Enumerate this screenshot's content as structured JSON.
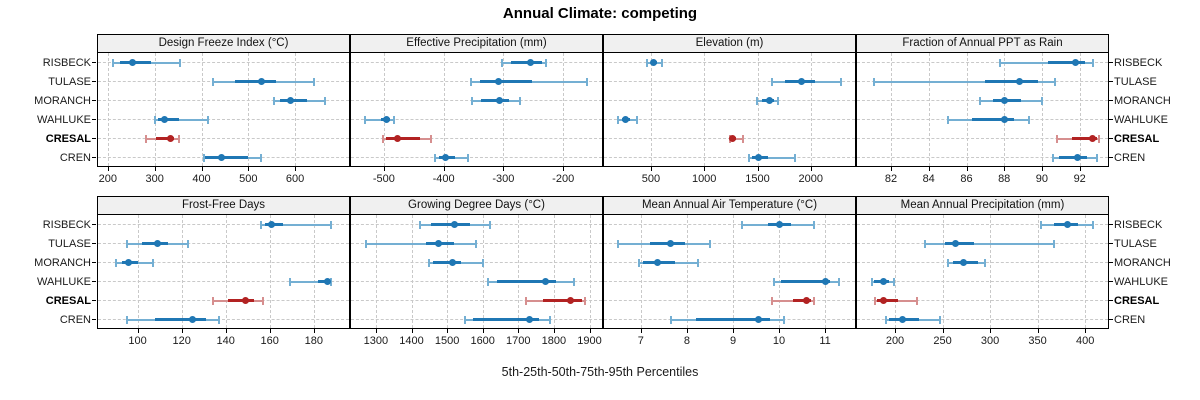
{
  "title": "Annual Climate: competing",
  "xlabel": "5th-25th-50th-75th-95th Percentiles",
  "colors": {
    "series_main": "#1f77b4",
    "series_light": "#74afd3",
    "highlight_main": "#b22222",
    "highlight_light": "#d68f8f",
    "grid": "#c9c9c9",
    "strip_bg": "#f0f0f0",
    "border": "#000000"
  },
  "chart_data": {
    "type": "multi-panel-percentile-dotplot",
    "percentiles": [
      5,
      25,
      50,
      75,
      95
    ],
    "sites": [
      "RISBECK",
      "TULASE",
      "MORANCH",
      "WAHLUKE",
      "CRESAL",
      "CREN"
    ],
    "highlight_site": "CRESAL",
    "panels": [
      {
        "title": "Design Freeze Index (°C)",
        "xlim": [
          179,
          715
        ],
        "ticks": [
          200,
          300,
          400,
          500,
          600
        ],
        "data": [
          [
            211,
            226,
            253,
            292,
            355
          ],
          [
            425,
            472,
            528,
            560,
            640
          ],
          [
            555,
            568,
            590,
            625,
            663
          ],
          [
            300,
            307,
            320,
            352,
            413
          ],
          [
            282,
            303,
            333,
            342,
            352
          ],
          [
            405,
            408,
            442,
            500,
            528
          ]
        ]
      },
      {
        "title": "Effective Precipitation (mm)",
        "xlim": [
          -555,
          -135
        ],
        "ticks": [
          -500,
          -400,
          -300,
          -200
        ],
        "data": [
          [
            -302,
            -287,
            -255,
            -236,
            -228
          ],
          [
            -355,
            -340,
            -308,
            -253,
            -160
          ],
          [
            -352,
            -338,
            -307,
            -291,
            -272
          ],
          [
            -531,
            -505,
            -495,
            -489,
            -483
          ],
          [
            -502,
            -497,
            -477,
            -440,
            -421
          ],
          [
            -415,
            -408,
            -397,
            -380,
            -360
          ]
        ]
      },
      {
        "title": "Elevation (m)",
        "xlim": [
          60,
          2415
        ],
        "ticks": [
          500,
          1000,
          1500,
          2000
        ],
        "data": [
          [
            465,
            500,
            525,
            560,
            605
          ],
          [
            1640,
            1760,
            1915,
            2040,
            2280
          ],
          [
            1495,
            1545,
            1610,
            1655,
            1695
          ],
          [
            190,
            230,
            265,
            300,
            370
          ],
          [
            1240,
            1252,
            1268,
            1300,
            1360
          ],
          [
            1420,
            1450,
            1510,
            1600,
            1850
          ]
        ]
      },
      {
        "title": "Fraction of Annual PPT as Rain",
        "xlim": [
          80.2,
          93.5
        ],
        "ticks": [
          82,
          84,
          86,
          88,
          90,
          92
        ],
        "data": [
          [
            87.8,
            90.3,
            91.8,
            92.3,
            92.7
          ],
          [
            81.1,
            87.0,
            88.8,
            89.8,
            90.7
          ],
          [
            86.7,
            87.4,
            88.0,
            88.9,
            90.0
          ],
          [
            85.0,
            86.3,
            88.0,
            88.5,
            89.3
          ],
          [
            90.8,
            91.6,
            92.7,
            92.9,
            93.0
          ],
          [
            90.6,
            90.9,
            91.9,
            92.4,
            92.9
          ]
        ]
      },
      {
        "title": "Frost-Free Days",
        "xlim": [
          82,
          196
        ],
        "ticks": [
          100,
          120,
          140,
          160,
          180
        ],
        "data": [
          [
            156,
            158,
            161,
            166,
            188
          ],
          [
            95,
            102,
            109,
            114,
            123
          ],
          [
            90,
            93,
            96,
            100,
            107
          ],
          [
            169,
            182,
            186,
            187,
            188
          ],
          [
            134,
            141,
            149,
            153,
            157
          ],
          [
            95,
            108,
            125,
            131,
            137
          ]
        ]
      },
      {
        "title": "Growing Degree Days (°C)",
        "xlim": [
          1230,
          1935
        ],
        "ticks": [
          1300,
          1400,
          1500,
          1600,
          1700,
          1800,
          1900
        ],
        "data": [
          [
            1425,
            1455,
            1520,
            1565,
            1620
          ],
          [
            1272,
            1440,
            1475,
            1520,
            1580
          ],
          [
            1450,
            1460,
            1515,
            1540,
            1600
          ],
          [
            1615,
            1640,
            1775,
            1805,
            1855
          ],
          [
            1720,
            1770,
            1845,
            1878,
            1888
          ],
          [
            1550,
            1572,
            1730,
            1758,
            1788
          ]
        ]
      },
      {
        "title": "Mean Annual Air Temperature (°C)",
        "xlim": [
          6.2,
          11.65
        ],
        "ticks": [
          7,
          8,
          9,
          10,
          11
        ],
        "data": [
          [
            9.2,
            9.75,
            10.0,
            10.25,
            10.75
          ],
          [
            6.5,
            7.2,
            7.65,
            7.95,
            8.5
          ],
          [
            6.95,
            7.05,
            7.35,
            7.75,
            8.25
          ],
          [
            9.9,
            10.05,
            11.0,
            11.1,
            11.3
          ],
          [
            9.85,
            10.3,
            10.6,
            10.7,
            10.75
          ],
          [
            7.65,
            8.2,
            9.55,
            9.8,
            10.1
          ]
        ]
      },
      {
        "title": "Mean Annual Precipitation (mm)",
        "xlim": [
          160,
          424
        ],
        "ticks": [
          200,
          250,
          300,
          350,
          400
        ],
        "data": [
          [
            354,
            367,
            381,
            392,
            408
          ],
          [
            231,
            252,
            264,
            283,
            367
          ],
          [
            256,
            261,
            272,
            287,
            295
          ],
          [
            176,
            178,
            188,
            194,
            199
          ],
          [
            179,
            181,
            188,
            203,
            223
          ],
          [
            190,
            194,
            208,
            225,
            247
          ]
        ]
      }
    ]
  }
}
